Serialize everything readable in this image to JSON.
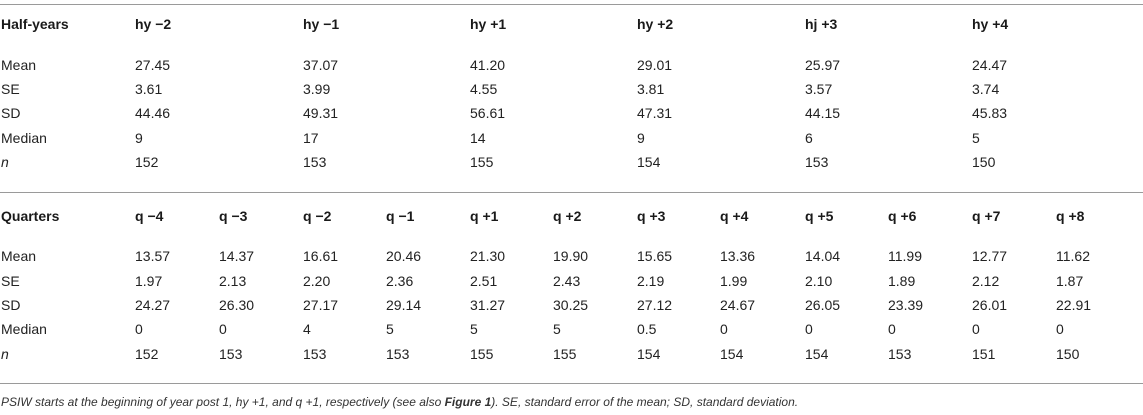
{
  "half_years": {
    "header": "Half-years",
    "columns": [
      "hy −2",
      "hy −1",
      "hy +1",
      "hy +2",
      "hj +3",
      "hy +4"
    ],
    "rows": [
      {
        "label": "Mean",
        "values": [
          "27.45",
          "37.07",
          "41.20",
          "29.01",
          "25.97",
          "24.47"
        ]
      },
      {
        "label": "SE",
        "values": [
          "3.61",
          "3.99",
          "4.55",
          "3.81",
          "3.57",
          "3.74"
        ]
      },
      {
        "label": "SD",
        "values": [
          "44.46",
          "49.31",
          "56.61",
          "47.31",
          "44.15",
          "45.83"
        ]
      },
      {
        "label": "Median",
        "values": [
          "9",
          "17",
          "14",
          "9",
          "6",
          "5"
        ]
      },
      {
        "label": "n",
        "values": [
          "152",
          "153",
          "155",
          "154",
          "153",
          "150"
        ]
      }
    ]
  },
  "quarters": {
    "header": "Quarters",
    "columns": [
      "q −4",
      "q −3",
      "q −2",
      "q −1",
      "q +1",
      "q +2",
      "q +3",
      "q +4",
      "q +5",
      "q +6",
      "q +7",
      "q +8"
    ],
    "rows": [
      {
        "label": "Mean",
        "values": [
          "13.57",
          "14.37",
          "16.61",
          "20.46",
          "21.30",
          "19.90",
          "15.65",
          "13.36",
          "14.04",
          "11.99",
          "12.77",
          "11.62"
        ]
      },
      {
        "label": "SE",
        "values": [
          "1.97",
          "2.13",
          "2.20",
          "2.36",
          "2.51",
          "2.43",
          "2.19",
          "1.99",
          "2.10",
          "1.89",
          "2.12",
          "1.87"
        ]
      },
      {
        "label": "SD",
        "values": [
          "24.27",
          "26.30",
          "27.17",
          "29.14",
          "31.27",
          "30.25",
          "27.12",
          "24.67",
          "26.05",
          "23.39",
          "26.01",
          "22.91"
        ]
      },
      {
        "label": "Median",
        "values": [
          "0",
          "0",
          "4",
          "5",
          "5",
          "5",
          "0.5",
          "0",
          "0",
          "0",
          "0",
          "0"
        ]
      },
      {
        "label": "n",
        "values": [
          "152",
          "153",
          "153",
          "153",
          "155",
          "155",
          "154",
          "154",
          "154",
          "153",
          "151",
          "150"
        ]
      }
    ]
  },
  "caption": {
    "part1": "PSIW starts at the beginning of year post 1, hy +1, and q +1, respectively (see also ",
    "figure_ref": "Figure 1",
    "part2": "). SE, standard error of the mean; SD, standard deviation."
  }
}
